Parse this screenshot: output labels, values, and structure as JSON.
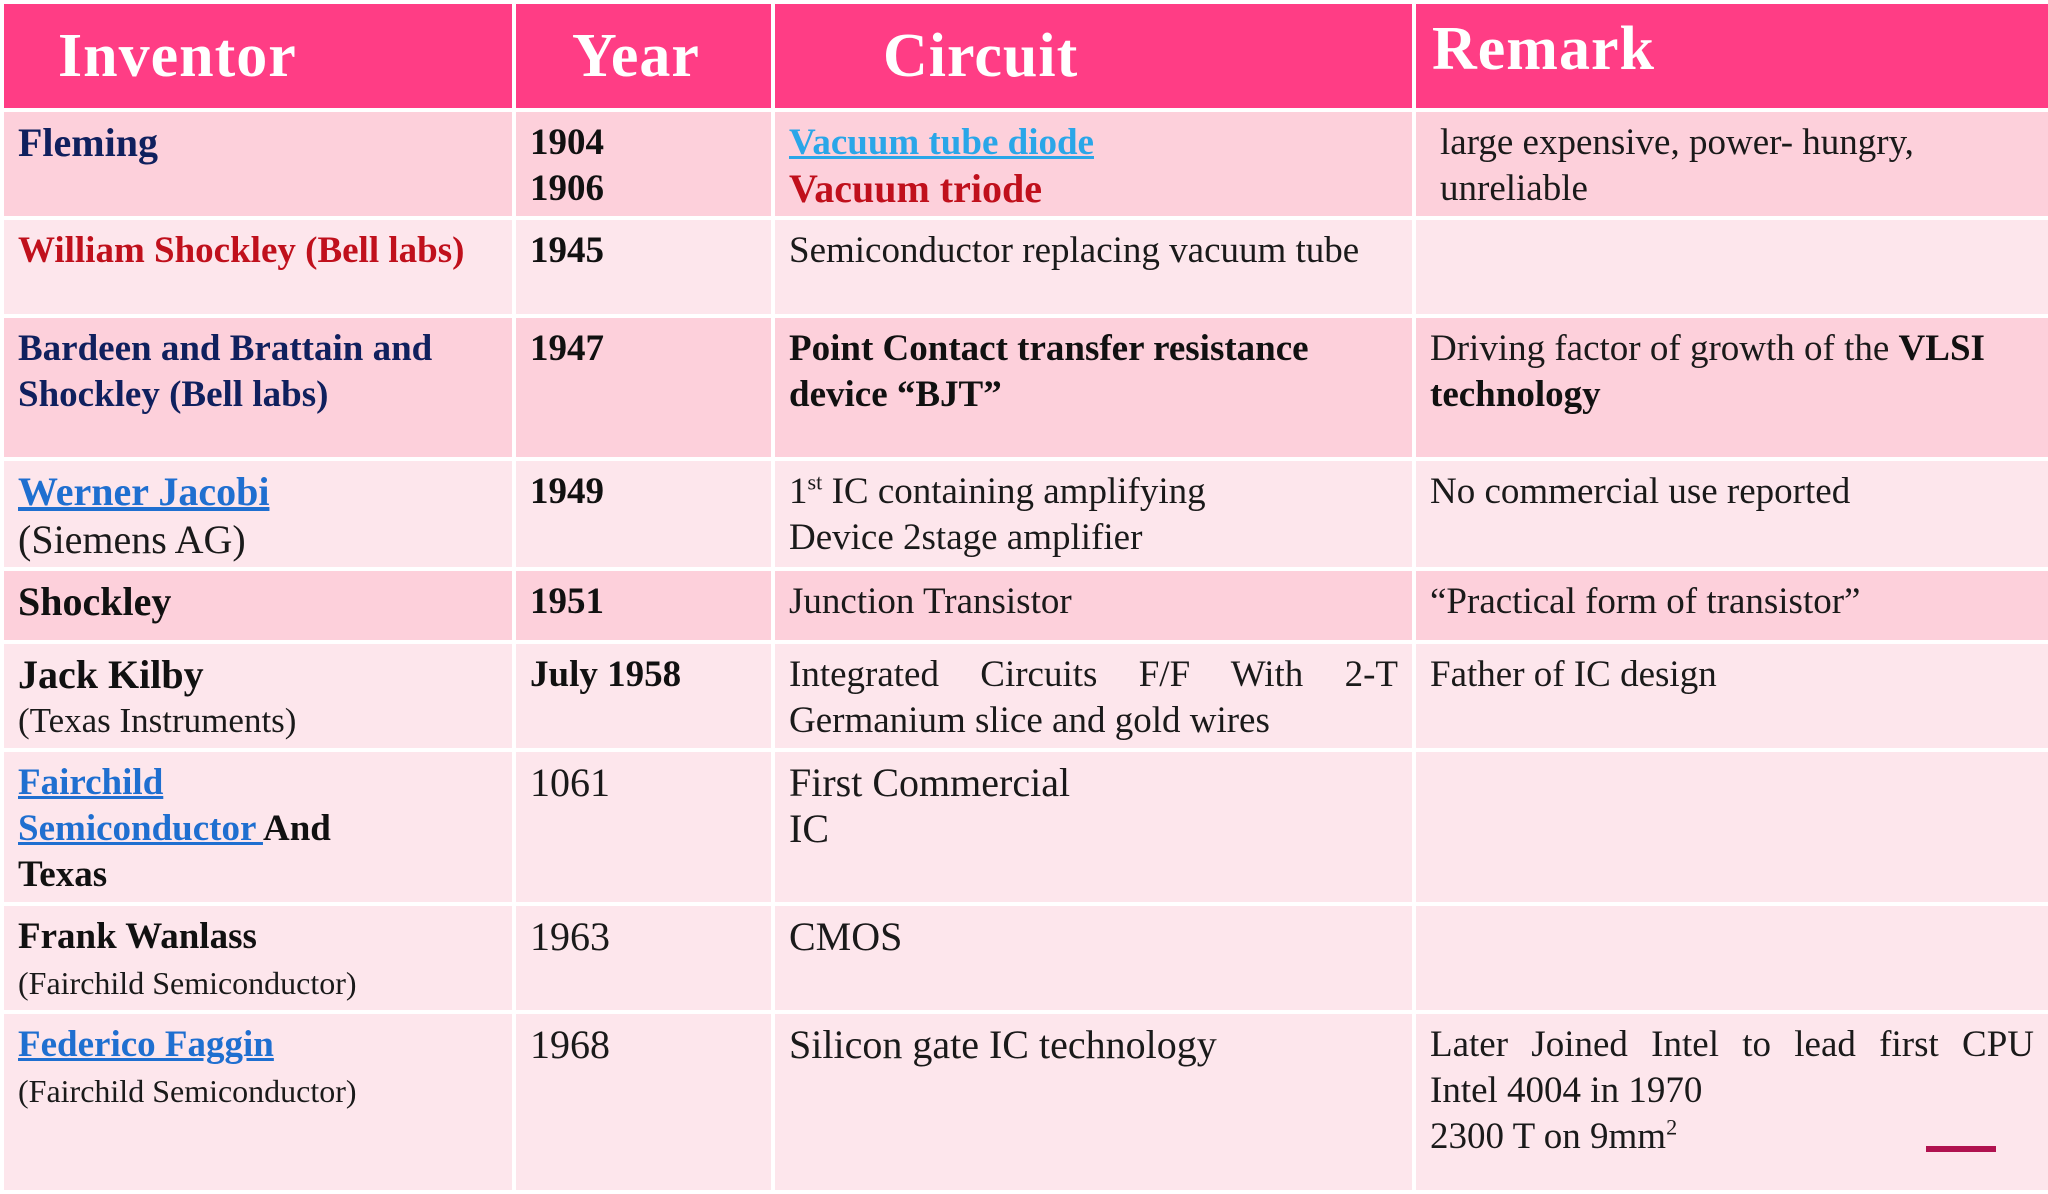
{
  "header": {
    "inventor": "Inventor",
    "year": "Year",
    "circuit": "Circuit",
    "remark": "Remark"
  },
  "rows": [
    {
      "inventor": "Fleming",
      "years": [
        "1904",
        "1906"
      ],
      "circuit": [
        "Vacuum tube diode",
        "Vacuum triode"
      ],
      "remark": "large expensive, power- hungry, unreliable"
    },
    {
      "inventor": "William Shockley (Bell labs)",
      "year": "1945",
      "circuit": "Semiconductor replacing vacuum tube",
      "remark": ""
    },
    {
      "inventor": "Bardeen and Brattain and Shockley (Bell labs)",
      "year": "1947",
      "circuit": "Point Contact transfer resistance device “BJT”",
      "remark_prefix": "Driving factor of growth of the ",
      "remark_bold": "VLSI technology"
    },
    {
      "inventor_link": "Werner Jacobi",
      "inventor_sub": "(Siemens AG)",
      "year": "1949",
      "circuit_ordinal": "1",
      "circuit_sup": "st",
      "circuit_line1": " IC containing amplifying",
      "circuit_line2": "Device 2stage amplifier",
      "remark": "No commercial use reported"
    },
    {
      "inventor": "Shockley",
      "year": "1951",
      "circuit": "Junction Transistor",
      "remark": "“Practical form of transistor”"
    },
    {
      "inventor": "Jack Kilby",
      "inventor_sub": "(Texas Instruments)",
      "year": "July 1958",
      "circuit_line1": "Integrated Circuits F/F With 2-T",
      "circuit_line2": "Germanium slice and gold wires",
      "remark": "Father of IC design"
    },
    {
      "inventor_link1": "Fairchild",
      "inventor_link2": "Semiconductor ",
      "inventor_and": " And",
      "inventor_rest": "Texas",
      "year": "1061",
      "circuit_line1": "First Commercial",
      "circuit_line2": "IC",
      "remark": ""
    },
    {
      "inventor": "Frank Wanlass",
      "inventor_sub": "(Fairchild Semiconductor)",
      "year": "1963",
      "circuit": "CMOS",
      "remark": ""
    },
    {
      "inventor_link": "Federico Faggin",
      "inventor_sub": "(Fairchild Semiconductor)",
      "year": "1968",
      "circuit": "Silicon gate IC technology",
      "remark_line1": "Later Joined Intel to lead first CPU",
      "remark_line2": "Intel 4004 in 1970",
      "remark_line3": "2300 T on 9mm",
      "remark_sup": "2"
    }
  ]
}
